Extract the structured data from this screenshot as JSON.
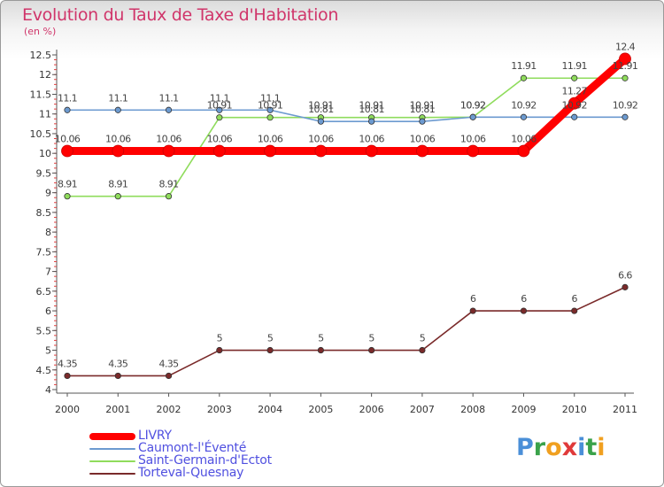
{
  "title": "Evolution du Taux de Taxe d'Habitation",
  "subtitle": "(en %)",
  "logo": {
    "text": "Proxiti",
    "letter_colors": [
      "#4a8fd8",
      "#3aa24a",
      "#f0a020",
      "#e03a3a",
      "#4a8fd8",
      "#3aa24a",
      "#f0a020"
    ]
  },
  "chart_data": {
    "type": "line",
    "title": "Evolution du Taux de Taxe d'Habitation",
    "ylabel": "(en %)",
    "xlabel": "",
    "ylim": [
      4,
      12.5
    ],
    "yticks": [
      "4",
      "4.5",
      "5",
      "5.5",
      "6",
      "6.5",
      "7",
      "7.5",
      "8",
      "8.5",
      "9",
      "9.5",
      "10",
      "10.5",
      "11",
      "11.5",
      "12",
      "12.5"
    ],
    "x": [
      "2000",
      "2001",
      "2002",
      "2003",
      "2004",
      "2005",
      "2006",
      "2007",
      "2008",
      "2009",
      "2010",
      "2011"
    ],
    "series": [
      {
        "name": "LIVRY",
        "color": "#ff0000",
        "values": [
          10.06,
          10.06,
          10.06,
          10.06,
          10.06,
          10.06,
          10.06,
          10.06,
          10.06,
          10.06,
          11.27,
          12.4
        ],
        "labels": [
          "10.06",
          "10.06",
          "10.06",
          "10.06",
          "10.06",
          "10.06",
          "10.06",
          "10.06",
          "10.06",
          "10.06",
          "11.27",
          "12.4"
        ]
      },
      {
        "name": "Caumont-l'Éventé",
        "color": "#6c9ad0",
        "values": [
          11.1,
          11.1,
          11.1,
          11.1,
          11.1,
          10.81,
          10.81,
          10.81,
          10.92,
          10.92,
          10.92,
          10.92
        ],
        "labels": [
          "11.1",
          "11.1",
          "11.1",
          "11.1",
          "11.1",
          "10.81",
          "10.81",
          "10.81",
          "10.92",
          "10.92",
          "10.92",
          "10.92"
        ]
      },
      {
        "name": "Saint-Germain-d'Ectot",
        "color": "#8fdc5c",
        "values": [
          8.91,
          8.91,
          8.91,
          10.91,
          10.91,
          10.91,
          10.91,
          10.91,
          10.92,
          11.91,
          11.91,
          11.91
        ],
        "labels": [
          "8.91",
          "8.91",
          "8.91",
          "10.91",
          "10.91",
          "10.91",
          "10.91",
          "10.91",
          "10.92",
          "11.91",
          "11.91",
          "11.91"
        ]
      },
      {
        "name": "Torteval-Quesnay",
        "color": "#7a2a2a",
        "values": [
          4.35,
          4.35,
          4.35,
          5,
          5,
          5,
          5,
          5,
          6,
          6,
          6,
          6.6
        ],
        "labels": [
          "4.35",
          "4.35",
          "4.35",
          "5",
          "5",
          "5",
          "5",
          "5",
          "6",
          "6",
          "6",
          "6.6"
        ]
      }
    ],
    "grid": false,
    "legend_position": "bottom-left"
  }
}
